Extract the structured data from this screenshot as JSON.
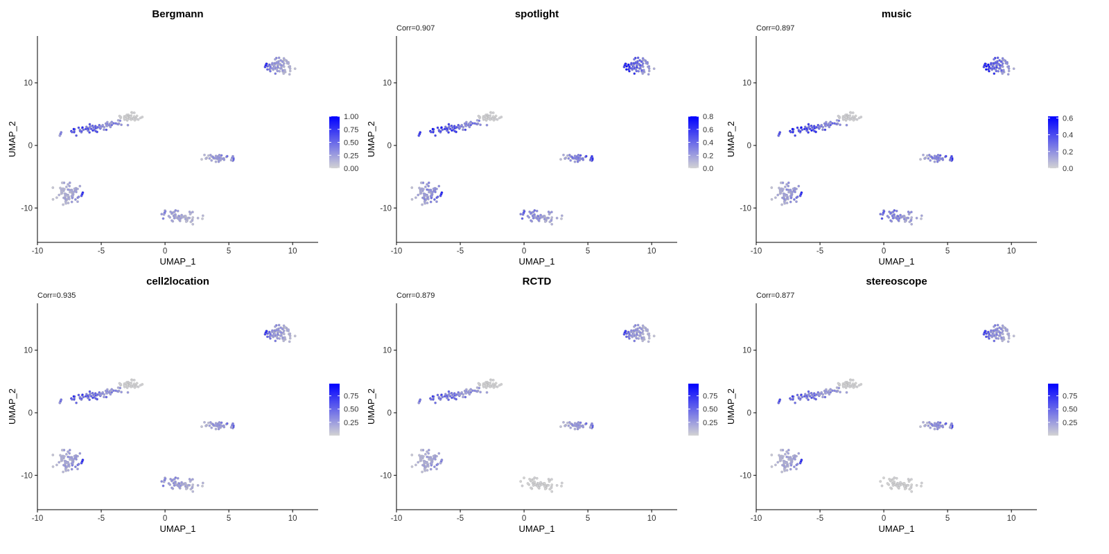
{
  "figure": {
    "colors": {
      "low": "#d3d3d3",
      "high": "#0000ff",
      "outline": "#b0b0b0",
      "axis": "#000000"
    }
  },
  "chart_data": [
    {
      "type": "scatter",
      "title": "Bergmann",
      "subtitle": "",
      "xlabel": "UMAP_1",
      "ylabel": "UMAP_2",
      "xlim": [
        -10,
        12
      ],
      "ylim": [
        -15.5,
        17.5
      ],
      "xticks": [
        -10,
        -5,
        0,
        5,
        10
      ],
      "yticks": [
        -10,
        0,
        10
      ],
      "legend": {
        "position": "right",
        "min": 0.0,
        "max": 1.0,
        "ticks": [
          "0.00",
          "0.25",
          "0.50",
          "0.75",
          "1.00"
        ]
      },
      "cluster_scores": [
        0.3,
        0.02,
        0.55,
        0.35,
        0.22,
        0.25
      ],
      "hotspots": [
        [
          0,
          1.0
        ],
        [
          2,
          0.55
        ],
        [
          3,
          0.5
        ],
        [
          4,
          0.55
        ],
        [
          5,
          0.95
        ]
      ]
    },
    {
      "type": "scatter",
      "title": "spotlight",
      "subtitle": "Corr=0.907",
      "xlabel": "UMAP_1",
      "ylabel": "UMAP_2",
      "xlim": [
        -10,
        12
      ],
      "ylim": [
        -15.5,
        17.5
      ],
      "xticks": [
        -10,
        -5,
        0,
        5,
        10
      ],
      "yticks": [
        -10,
        0,
        10
      ],
      "legend": {
        "position": "right",
        "min": 0.0,
        "max": 0.8,
        "ticks": [
          "0.0",
          "0.2",
          "0.4",
          "0.6",
          "0.8"
        ]
      },
      "cluster_scores": [
        0.45,
        0.02,
        0.5,
        0.4,
        0.25,
        0.3
      ],
      "hotspots": [
        [
          0,
          0.8
        ],
        [
          2,
          0.75
        ],
        [
          3,
          0.7
        ],
        [
          4,
          0.6
        ],
        [
          5,
          0.8
        ]
      ]
    },
    {
      "type": "scatter",
      "title": "music",
      "subtitle": "Corr=0.897",
      "xlabel": "UMAP_1",
      "ylabel": "UMAP_2",
      "xlim": [
        -10,
        12
      ],
      "ylim": [
        -15.5,
        17.5
      ],
      "xticks": [
        -10,
        -5,
        0,
        5,
        10
      ],
      "yticks": [
        -10,
        0,
        10
      ],
      "legend": {
        "position": "right",
        "min": 0.0,
        "max": 0.62,
        "ticks": [
          "0.0",
          "0.2",
          "0.4",
          "0.6"
        ]
      },
      "cluster_scores": [
        0.35,
        0.02,
        0.4,
        0.3,
        0.22,
        0.2
      ],
      "hotspots": [
        [
          0,
          0.62
        ],
        [
          2,
          0.5
        ],
        [
          3,
          0.5
        ],
        [
          4,
          0.45
        ],
        [
          5,
          0.6
        ]
      ]
    },
    {
      "type": "scatter",
      "title": "cell2location",
      "subtitle": "Corr=0.935",
      "xlabel": "UMAP_1",
      "ylabel": "UMAP_2",
      "xlim": [
        -10,
        12
      ],
      "ylim": [
        -15.5,
        17.5
      ],
      "xticks": [
        -10,
        -5,
        0,
        5,
        10
      ],
      "yticks": [
        -10,
        0,
        10
      ],
      "legend": {
        "position": "right",
        "min": 0.0,
        "max": 0.98,
        "ticks": [
          "0.25",
          "0.50",
          "0.75"
        ]
      },
      "cluster_scores": [
        0.3,
        0.02,
        0.5,
        0.35,
        0.25,
        0.3
      ],
      "hotspots": [
        [
          0,
          0.95
        ],
        [
          2,
          0.6
        ],
        [
          3,
          0.55
        ],
        [
          4,
          0.5
        ],
        [
          5,
          0.95
        ]
      ]
    },
    {
      "type": "scatter",
      "title": "RCTD",
      "subtitle": "Corr=0.879",
      "xlabel": "UMAP_1",
      "ylabel": "UMAP_2",
      "xlim": [
        -10,
        12
      ],
      "ylim": [
        -15.5,
        17.5
      ],
      "xticks": [
        -10,
        -5,
        0,
        5,
        10
      ],
      "yticks": [
        -10,
        0,
        10
      ],
      "legend": {
        "position": "right",
        "min": 0.0,
        "max": 0.98,
        "ticks": [
          "0.25",
          "0.50",
          "0.75"
        ]
      },
      "cluster_scores": [
        0.3,
        0.02,
        0.45,
        0.35,
        0.02,
        0.25
      ],
      "hotspots": [
        [
          0,
          0.9
        ],
        [
          2,
          0.6
        ],
        [
          3,
          0.5
        ],
        [
          5,
          0.5
        ]
      ]
    },
    {
      "type": "scatter",
      "title": "stereoscope",
      "subtitle": "Corr=0.877",
      "xlabel": "UMAP_1",
      "ylabel": "UMAP_2",
      "xlim": [
        -10,
        12
      ],
      "ylim": [
        -15.5,
        17.5
      ],
      "xticks": [
        -10,
        -5,
        0,
        5,
        10
      ],
      "yticks": [
        -10,
        0,
        10
      ],
      "legend": {
        "position": "right",
        "min": 0.0,
        "max": 0.98,
        "ticks": [
          "0.25",
          "0.50",
          "0.75"
        ]
      },
      "cluster_scores": [
        0.35,
        0.02,
        0.45,
        0.4,
        0.02,
        0.25
      ],
      "hotspots": [
        [
          0,
          0.9
        ],
        [
          2,
          0.8
        ],
        [
          3,
          0.5
        ],
        [
          5,
          0.95
        ]
      ]
    }
  ],
  "clusters": [
    {
      "center": [
        9.0,
        12.8
      ],
      "spread": [
        0.85,
        1.3
      ],
      "count": 70,
      "gradient": -1
    },
    {
      "center": [
        -2.8,
        4.5
      ],
      "spread": [
        0.8,
        0.55
      ],
      "count": 45,
      "gradient": 0
    },
    {
      "center": [
        -5.3,
        3.0
      ],
      "spread": [
        2.4,
        0.55
      ],
      "count": 75,
      "gradient": -1,
      "angle": 22
    },
    {
      "center": [
        4.1,
        -2.0
      ],
      "spread": [
        0.9,
        0.5
      ],
      "count": 40,
      "gradient": 1
    },
    {
      "center": [
        1.5,
        -11.5
      ],
      "spread": [
        1.3,
        0.75
      ],
      "count": 60,
      "gradient": -1,
      "angle": -25
    },
    {
      "center": [
        -7.6,
        -7.8
      ],
      "spread": [
        0.85,
        1.3
      ],
      "count": 70,
      "gradient": 1
    }
  ]
}
